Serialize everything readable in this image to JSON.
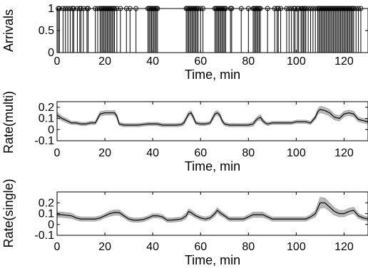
{
  "chart_data": [
    {
      "type": "line",
      "panel": "arrivals",
      "xlabel": "Time, min",
      "ylabel": "Arrivals",
      "xlim": [
        0,
        130
      ],
      "ylim": [
        0,
        1
      ],
      "xticks": [
        0,
        20,
        40,
        60,
        80,
        100,
        120
      ],
      "yticks": [
        0,
        0.5,
        1
      ],
      "ytick_labels": [
        "0",
        "0.5",
        "1"
      ],
      "arrival_times": [
        0.5,
        1.0,
        2.5,
        3.5,
        4.5,
        5.5,
        6.5,
        7.0,
        8.5,
        9.5,
        10.0,
        11.0,
        12.5,
        13.0,
        16.0,
        17.0,
        18.0,
        18.5,
        19.0,
        19.5,
        20.0,
        20.5,
        21.0,
        21.5,
        22.0,
        22.5,
        23.0,
        23.5,
        24.0,
        25.0,
        26.5,
        29.0,
        30.5,
        33.0,
        38.0,
        38.5,
        39.0,
        39.5,
        40.0,
        40.5,
        41.0,
        41.5,
        42.0,
        54.0,
        54.5,
        55.0,
        55.5,
        56.0,
        56.5,
        57.0,
        57.5,
        58.0,
        58.5,
        59.0,
        60.0,
        61.0,
        66.0,
        66.5,
        67.0,
        67.5,
        68.0,
        68.5,
        69.0,
        69.5,
        70.0,
        70.5,
        72.5,
        73.0,
        77.0,
        80.0,
        82.0,
        82.5,
        83.0,
        83.5,
        84.0,
        84.5,
        85.0,
        88.0,
        91.0,
        92.0,
        92.5,
        93.5,
        96.0,
        97.0,
        98.0,
        99.0,
        99.5,
        100.5,
        101.0,
        102.0,
        102.5,
        103.0,
        103.5,
        104.0,
        105.0,
        106.0,
        107.0,
        108.0,
        109.0,
        109.5,
        110.0,
        110.5,
        111.0,
        111.5,
        112.0,
        112.5,
        113.0,
        113.5,
        114.0,
        114.5,
        115.0,
        115.5,
        116.0,
        116.5,
        117.0,
        117.5,
        118.0,
        118.5,
        119.0,
        119.5,
        120.0,
        120.5,
        121.0,
        121.5,
        122.0,
        122.5,
        123.0,
        123.5,
        124.0,
        125.0,
        126.0,
        127.0
      ]
    },
    {
      "type": "line",
      "panel": "rate-multi",
      "xlabel": "Time, min",
      "ylabel": "Rate(multi)",
      "xlim": [
        0,
        130
      ],
      "ylim": [
        -0.1,
        0.25
      ],
      "xticks": [
        0,
        20,
        40,
        60,
        80,
        100,
        120
      ],
      "yticks": [
        -0.1,
        0,
        0.1,
        0.2
      ],
      "ytick_labels": [
        "-0.1",
        "0",
        "0.1",
        "0.2"
      ],
      "x": [
        0,
        2,
        4,
        6,
        8,
        10,
        12,
        14,
        16,
        17,
        18,
        20,
        22,
        24,
        25,
        26,
        28,
        30,
        32,
        34,
        36,
        38,
        40,
        42,
        44,
        46,
        48,
        50,
        52,
        53,
        54,
        55,
        56,
        57,
        58,
        60,
        62,
        64,
        65,
        66,
        67,
        68,
        69,
        70,
        72,
        74,
        76,
        78,
        80,
        82,
        83,
        84,
        85,
        86,
        87,
        88,
        90,
        92,
        94,
        96,
        98,
        100,
        102,
        104,
        106,
        108,
        109,
        110,
        112,
        114,
        116,
        118,
        120,
        122,
        124,
        126,
        128,
        130
      ],
      "y": [
        0.13,
        0.1,
        0.08,
        0.06,
        0.06,
        0.05,
        0.05,
        0.06,
        0.06,
        0.1,
        0.14,
        0.15,
        0.15,
        0.15,
        0.12,
        0.05,
        0.04,
        0.04,
        0.04,
        0.04,
        0.045,
        0.05,
        0.05,
        0.05,
        0.04,
        0.04,
        0.04,
        0.04,
        0.045,
        0.06,
        0.1,
        0.14,
        0.15,
        0.11,
        0.06,
        0.05,
        0.05,
        0.06,
        0.1,
        0.14,
        0.15,
        0.13,
        0.08,
        0.05,
        0.04,
        0.04,
        0.04,
        0.04,
        0.04,
        0.05,
        0.08,
        0.1,
        0.11,
        0.08,
        0.06,
        0.05,
        0.06,
        0.06,
        0.06,
        0.06,
        0.06,
        0.07,
        0.07,
        0.07,
        0.06,
        0.11,
        0.16,
        0.18,
        0.17,
        0.15,
        0.11,
        0.1,
        0.14,
        0.15,
        0.14,
        0.09,
        0.08,
        0.07
      ],
      "band": [
        0.025,
        0.02,
        0.02,
        0.015,
        0.015,
        0.015,
        0.015,
        0.015,
        0.015,
        0.02,
        0.02,
        0.02,
        0.02,
        0.02,
        0.02,
        0.015,
        0.015,
        0.015,
        0.015,
        0.015,
        0.015,
        0.015,
        0.015,
        0.015,
        0.015,
        0.015,
        0.015,
        0.015,
        0.015,
        0.02,
        0.02,
        0.02,
        0.02,
        0.02,
        0.015,
        0.015,
        0.015,
        0.015,
        0.02,
        0.02,
        0.02,
        0.02,
        0.02,
        0.015,
        0.015,
        0.015,
        0.015,
        0.015,
        0.015,
        0.02,
        0.02,
        0.02,
        0.025,
        0.02,
        0.015,
        0.015,
        0.015,
        0.015,
        0.015,
        0.015,
        0.015,
        0.015,
        0.015,
        0.015,
        0.015,
        0.02,
        0.025,
        0.03,
        0.03,
        0.03,
        0.025,
        0.025,
        0.025,
        0.025,
        0.025,
        0.02,
        0.02,
        0.02
      ]
    },
    {
      "type": "line",
      "panel": "rate-single",
      "xlabel": "Time, min",
      "ylabel": "Rate(single)",
      "xlim": [
        0,
        130
      ],
      "ylim": [
        -0.1,
        0.3
      ],
      "xticks": [
        0,
        20,
        40,
        60,
        80,
        100,
        120
      ],
      "yticks": [
        -0.1,
        0,
        0.1,
        0.2
      ],
      "ytick_labels": [
        "-0.1",
        "0",
        "0.1",
        "0.2"
      ],
      "x": [
        0,
        2,
        4,
        6,
        8,
        10,
        12,
        14,
        16,
        18,
        20,
        22,
        24,
        26,
        28,
        30,
        32,
        34,
        36,
        38,
        40,
        42,
        44,
        46,
        48,
        50,
        52,
        54,
        55,
        56,
        58,
        60,
        62,
        64,
        66,
        67,
        68,
        70,
        72,
        74,
        76,
        78,
        80,
        82,
        84,
        86,
        88,
        90,
        92,
        94,
        96,
        98,
        100,
        102,
        104,
        106,
        108,
        110,
        112,
        114,
        116,
        118,
        120,
        122,
        124,
        126,
        128,
        130
      ],
      "y": [
        0.09,
        0.09,
        0.085,
        0.08,
        0.06,
        0.05,
        0.05,
        0.05,
        0.05,
        0.06,
        0.08,
        0.1,
        0.11,
        0.11,
        0.08,
        0.05,
        0.04,
        0.04,
        0.045,
        0.06,
        0.08,
        0.08,
        0.07,
        0.04,
        0.04,
        0.045,
        0.05,
        0.08,
        0.12,
        0.11,
        0.08,
        0.06,
        0.05,
        0.06,
        0.1,
        0.13,
        0.11,
        0.08,
        0.05,
        0.05,
        0.05,
        0.05,
        0.07,
        0.09,
        0.09,
        0.09,
        0.07,
        0.05,
        0.05,
        0.05,
        0.05,
        0.05,
        0.05,
        0.05,
        0.05,
        0.07,
        0.1,
        0.2,
        0.2,
        0.16,
        0.12,
        0.1,
        0.1,
        0.12,
        0.13,
        0.08,
        0.06,
        0.05
      ],
      "band": [
        0.025,
        0.025,
        0.025,
        0.025,
        0.02,
        0.02,
        0.02,
        0.02,
        0.02,
        0.02,
        0.02,
        0.025,
        0.025,
        0.025,
        0.02,
        0.02,
        0.02,
        0.02,
        0.02,
        0.02,
        0.02,
        0.02,
        0.02,
        0.02,
        0.02,
        0.02,
        0.02,
        0.025,
        0.025,
        0.025,
        0.02,
        0.02,
        0.02,
        0.02,
        0.025,
        0.025,
        0.025,
        0.02,
        0.02,
        0.02,
        0.02,
        0.02,
        0.02,
        0.025,
        0.025,
        0.025,
        0.02,
        0.02,
        0.02,
        0.02,
        0.02,
        0.02,
        0.02,
        0.02,
        0.02,
        0.02,
        0.03,
        0.05,
        0.045,
        0.04,
        0.035,
        0.03,
        0.03,
        0.03,
        0.03,
        0.025,
        0.02,
        0.02
      ]
    }
  ]
}
